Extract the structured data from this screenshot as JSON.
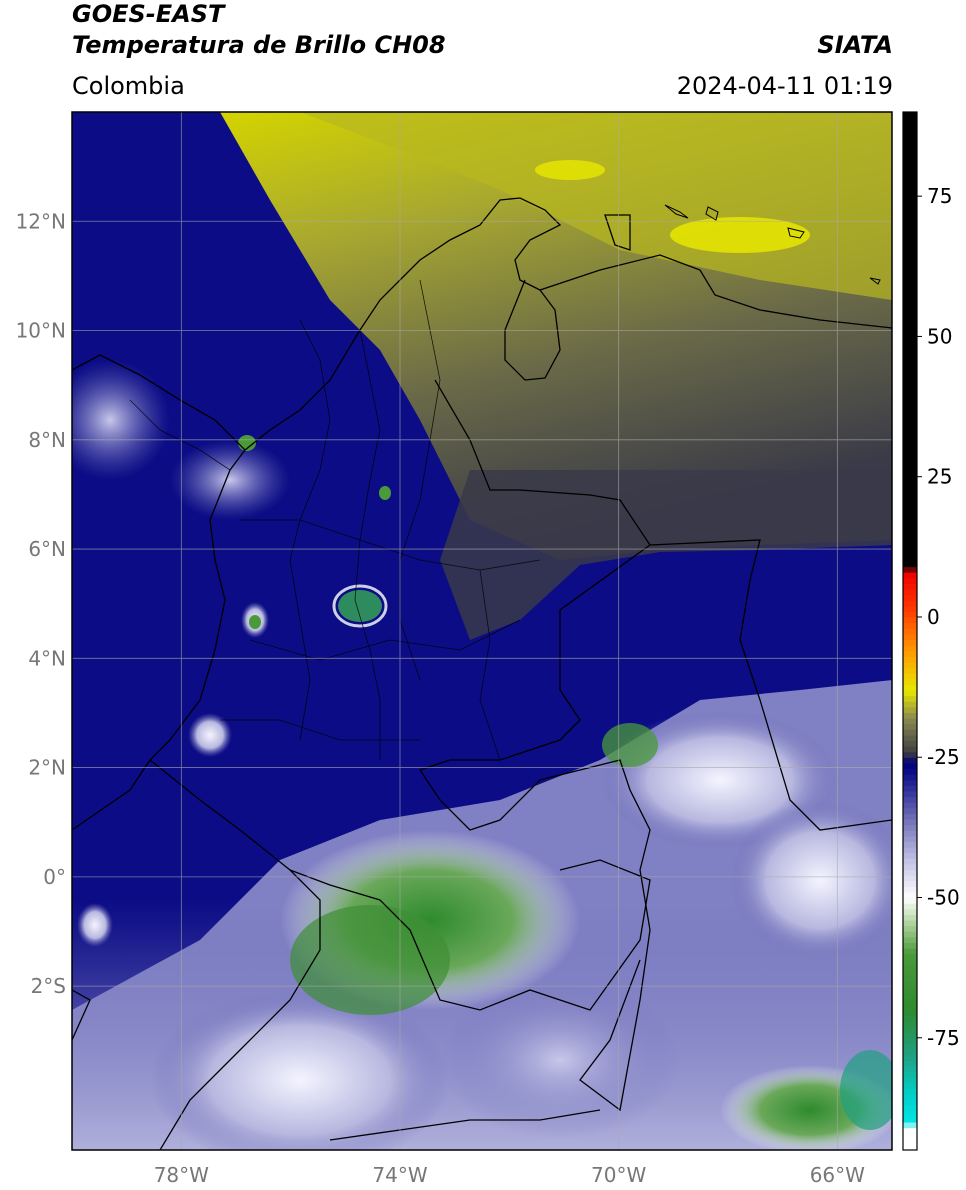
{
  "header": {
    "satellite": "GOES-EAST",
    "product": "Temperatura de Brillo CH08",
    "credit": "SIATA",
    "region": "Colombia",
    "timestamp": "2024-04-11 01:19"
  },
  "map": {
    "lon_range": [
      -80,
      -65
    ],
    "lat_range": [
      -5,
      14
    ],
    "lon_ticks": [
      {
        "value": -78,
        "label": "78°W"
      },
      {
        "value": -74,
        "label": "74°W"
      },
      {
        "value": -70,
        "label": "70°W"
      },
      {
        "value": -66,
        "label": "66°W"
      }
    ],
    "lat_ticks": [
      {
        "value": 12,
        "label": "12°N"
      },
      {
        "value": 10,
        "label": "10°N"
      },
      {
        "value": 8,
        "label": "8°N"
      },
      {
        "value": 6,
        "label": "6°N"
      },
      {
        "value": 4,
        "label": "4°N"
      },
      {
        "value": 2,
        "label": "2°N"
      },
      {
        "value": 0,
        "label": "0°"
      },
      {
        "value": -2,
        "label": "2°S"
      }
    ],
    "gridlines": true
  },
  "colorbar": {
    "range": [
      -95,
      90
    ],
    "ticks": [
      {
        "value": 75,
        "label": "75"
      },
      {
        "value": 50,
        "label": "50"
      },
      {
        "value": 25,
        "label": "25"
      },
      {
        "value": 0,
        "label": "0"
      },
      {
        "value": -25,
        "label": "-25"
      },
      {
        "value": -50,
        "label": "-50"
      },
      {
        "value": -75,
        "label": "-75"
      }
    ],
    "stops": [
      {
        "value": -95,
        "color": "#ffffff"
      },
      {
        "value": -91,
        "color": "#ffffff"
      },
      {
        "value": -90,
        "color": "#00e5e5"
      },
      {
        "value": -85,
        "color": "#00d0c8"
      },
      {
        "value": -78,
        "color": "#20a080"
      },
      {
        "value": -70,
        "color": "#2e8b2e"
      },
      {
        "value": -60,
        "color": "#4a9a3a"
      },
      {
        "value": -54,
        "color": "#b8d8a8"
      },
      {
        "value": -50,
        "color": "#ffffff"
      },
      {
        "value": -44,
        "color": "#c8c8e8"
      },
      {
        "value": -36,
        "color": "#7070b8"
      },
      {
        "value": -28,
        "color": "#10108a"
      },
      {
        "value": -26,
        "color": "#00007a"
      },
      {
        "value": -24,
        "color": "#404040"
      },
      {
        "value": -18,
        "color": "#8a8a50"
      },
      {
        "value": -13,
        "color": "#e8e800"
      },
      {
        "value": -6,
        "color": "#ff9900"
      },
      {
        "value": 2,
        "color": "#ff3300"
      },
      {
        "value": 8,
        "color": "#ee0000"
      },
      {
        "value": 9,
        "color": "#000000"
      },
      {
        "value": 90,
        "color": "#000000"
      }
    ]
  }
}
